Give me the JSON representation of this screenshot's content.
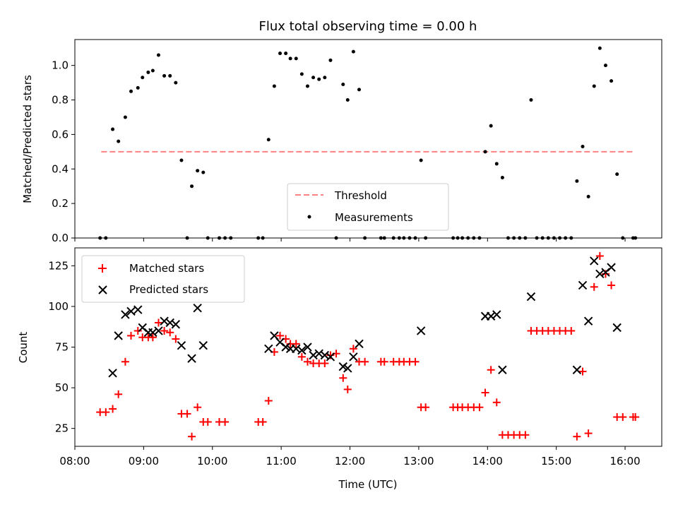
{
  "chart_data": [
    {
      "type": "scatter",
      "title": "Flux total observing time = 0.00 h",
      "xlabel": "",
      "ylabel": "Matched/Predicted stars",
      "ylim": [
        0,
        1.15
      ],
      "yticks": [
        "0.0",
        "0.2",
        "0.4",
        "0.6",
        "0.8",
        "1.0"
      ],
      "grid": false,
      "legend": "lower-center",
      "threshold": {
        "name": "Threshold",
        "value": 0.5,
        "x_start": "08:23",
        "x_end": "16:08",
        "color": "#ff8080"
      },
      "series": [
        {
          "name": "Measurements",
          "color": "#000000",
          "points": [
            [
              "08:22",
              0.0
            ],
            [
              "08:27",
              0.0
            ],
            [
              "08:33",
              0.63
            ],
            [
              "08:38",
              0.56
            ],
            [
              "08:44",
              0.7
            ],
            [
              "08:49",
              0.85
            ],
            [
              "08:55",
              0.87
            ],
            [
              "08:59",
              0.93
            ],
            [
              "09:04",
              0.96
            ],
            [
              "09:08",
              0.97
            ],
            [
              "09:13",
              1.06
            ],
            [
              "09:18",
              0.94
            ],
            [
              "09:23",
              0.94
            ],
            [
              "09:28",
              0.9
            ],
            [
              "09:33",
              0.45
            ],
            [
              "09:38",
              0.0
            ],
            [
              "09:42",
              0.3
            ],
            [
              "09:47",
              0.39
            ],
            [
              "09:52",
              0.38
            ],
            [
              "09:56",
              0.0
            ],
            [
              "10:06",
              0.0
            ],
            [
              "10:11",
              0.0
            ],
            [
              "10:16",
              0.0
            ],
            [
              "10:40",
              0.0
            ],
            [
              "10:44",
              0.0
            ],
            [
              "10:49",
              0.57
            ],
            [
              "10:54",
              0.88
            ],
            [
              "10:59",
              1.07
            ],
            [
              "11:04",
              1.07
            ],
            [
              "11:08",
              1.04
            ],
            [
              "11:13",
              1.04
            ],
            [
              "11:18",
              0.95
            ],
            [
              "11:23",
              0.88
            ],
            [
              "11:28",
              0.93
            ],
            [
              "11:33",
              0.92
            ],
            [
              "11:38",
              0.93
            ],
            [
              "11:43",
              1.03
            ],
            [
              "11:48",
              0.0
            ],
            [
              "11:54",
              0.89
            ],
            [
              "11:58",
              0.8
            ],
            [
              "12:03",
              1.08
            ],
            [
              "12:08",
              0.86
            ],
            [
              "12:13",
              0.0
            ],
            [
              "12:27",
              0.0
            ],
            [
              "12:30",
              0.0
            ],
            [
              "12:38",
              0.0
            ],
            [
              "12:43",
              0.0
            ],
            [
              "12:47",
              0.0
            ],
            [
              "12:52",
              0.0
            ],
            [
              "12:57",
              0.0
            ],
            [
              "13:02",
              0.45
            ],
            [
              "13:06",
              0.0
            ],
            [
              "13:30",
              0.0
            ],
            [
              "13:34",
              0.0
            ],
            [
              "13:38",
              0.0
            ],
            [
              "13:43",
              0.0
            ],
            [
              "13:48",
              0.0
            ],
            [
              "13:53",
              0.0
            ],
            [
              "13:58",
              0.5
            ],
            [
              "14:03",
              0.65
            ],
            [
              "14:08",
              0.43
            ],
            [
              "14:13",
              0.35
            ],
            [
              "14:18",
              0.0
            ],
            [
              "14:23",
              0.0
            ],
            [
              "14:28",
              0.0
            ],
            [
              "14:33",
              0.0
            ],
            [
              "14:38",
              0.8
            ],
            [
              "14:43",
              0.0
            ],
            [
              "14:48",
              0.0
            ],
            [
              "14:53",
              0.0
            ],
            [
              "14:58",
              0.0
            ],
            [
              "15:03",
              0.0
            ],
            [
              "15:08",
              0.0
            ],
            [
              "15:13",
              0.0
            ],
            [
              "15:18",
              0.33
            ],
            [
              "15:23",
              0.53
            ],
            [
              "15:28",
              0.24
            ],
            [
              "15:33",
              0.88
            ],
            [
              "15:38",
              1.1
            ],
            [
              "15:43",
              1.0
            ],
            [
              "15:48",
              0.91
            ],
            [
              "15:53",
              0.37
            ],
            [
              "15:58",
              0.0
            ],
            [
              "16:07",
              0.0
            ],
            [
              "16:09",
              0.0
            ]
          ]
        }
      ]
    },
    {
      "type": "scatter",
      "title": "",
      "xlabel": "Time (UTC)",
      "ylabel": "Count",
      "xlim": [
        "08:00",
        "16:32"
      ],
      "xticks": [
        "08:00",
        "09:00",
        "10:00",
        "11:00",
        "12:00",
        "13:00",
        "14:00",
        "15:00",
        "16:00"
      ],
      "ylim": [
        14,
        136
      ],
      "yticks": [
        "25",
        "50",
        "75",
        "100",
        "125"
      ],
      "grid": false,
      "legend": "top-left",
      "series": [
        {
          "name": "Matched stars",
          "marker": "plus",
          "color": "#ff0000",
          "points": [
            [
              "08:22",
              35
            ],
            [
              "08:27",
              35
            ],
            [
              "08:33",
              37
            ],
            [
              "08:38",
              46
            ],
            [
              "08:44",
              66
            ],
            [
              "08:49",
              82
            ],
            [
              "08:55",
              85
            ],
            [
              "08:59",
              81
            ],
            [
              "09:04",
              81
            ],
            [
              "09:08",
              81
            ],
            [
              "09:13",
              90
            ],
            [
              "09:18",
              85
            ],
            [
              "09:23",
              84
            ],
            [
              "09:28",
              80
            ],
            [
              "09:33",
              34
            ],
            [
              "09:38",
              34
            ],
            [
              "09:42",
              20
            ],
            [
              "09:47",
              38
            ],
            [
              "09:52",
              29
            ],
            [
              "09:56",
              29
            ],
            [
              "10:06",
              29
            ],
            [
              "10:11",
              29
            ],
            [
              "10:40",
              29
            ],
            [
              "10:44",
              29
            ],
            [
              "10:49",
              42
            ],
            [
              "10:54",
              72
            ],
            [
              "10:59",
              82
            ],
            [
              "11:04",
              80
            ],
            [
              "11:08",
              77
            ],
            [
              "11:13",
              77
            ],
            [
              "11:18",
              69
            ],
            [
              "11:23",
              66
            ],
            [
              "11:28",
              65
            ],
            [
              "11:33",
              65
            ],
            [
              "11:38",
              65
            ],
            [
              "11:43",
              70
            ],
            [
              "11:48",
              71
            ],
            [
              "11:54",
              56
            ],
            [
              "11:58",
              49
            ],
            [
              "12:03",
              74
            ],
            [
              "12:08",
              66
            ],
            [
              "12:13",
              66
            ],
            [
              "12:27",
              66
            ],
            [
              "12:30",
              66
            ],
            [
              "12:38",
              66
            ],
            [
              "12:43",
              66
            ],
            [
              "12:47",
              66
            ],
            [
              "12:52",
              66
            ],
            [
              "12:57",
              66
            ],
            [
              "13:02",
              38
            ],
            [
              "13:06",
              38
            ],
            [
              "13:30",
              38
            ],
            [
              "13:34",
              38
            ],
            [
              "13:38",
              38
            ],
            [
              "13:43",
              38
            ],
            [
              "13:48",
              38
            ],
            [
              "13:53",
              38
            ],
            [
              "13:58",
              47
            ],
            [
              "14:03",
              61
            ],
            [
              "14:08",
              41
            ],
            [
              "14:13",
              21
            ],
            [
              "14:18",
              21
            ],
            [
              "14:23",
              21
            ],
            [
              "14:28",
              21
            ],
            [
              "14:33",
              21
            ],
            [
              "14:38",
              85
            ],
            [
              "14:43",
              85
            ],
            [
              "14:48",
              85
            ],
            [
              "14:53",
              85
            ],
            [
              "14:58",
              85
            ],
            [
              "15:03",
              85
            ],
            [
              "15:08",
              85
            ],
            [
              "15:13",
              85
            ],
            [
              "15:18",
              20
            ],
            [
              "15:23",
              60
            ],
            [
              "15:28",
              22
            ],
            [
              "15:33",
              112
            ],
            [
              "15:38",
              131
            ],
            [
              "15:43",
              120
            ],
            [
              "15:48",
              113
            ],
            [
              "15:53",
              32
            ],
            [
              "15:58",
              32
            ],
            [
              "16:07",
              32
            ],
            [
              "16:09",
              32
            ]
          ]
        },
        {
          "name": "Predicted stars",
          "marker": "x",
          "color": "#000000",
          "points": [
            [
              "08:33",
              59
            ],
            [
              "08:38",
              82
            ],
            [
              "08:44",
              95
            ],
            [
              "08:49",
              97
            ],
            [
              "08:55",
              98
            ],
            [
              "08:59",
              87
            ],
            [
              "09:04",
              84
            ],
            [
              "09:08",
              84
            ],
            [
              "09:13",
              85
            ],
            [
              "09:18",
              91
            ],
            [
              "09:23",
              90
            ],
            [
              "09:28",
              89
            ],
            [
              "09:33",
              76
            ],
            [
              "09:42",
              68
            ],
            [
              "09:47",
              99
            ],
            [
              "09:52",
              76
            ],
            [
              "10:49",
              74
            ],
            [
              "10:54",
              82
            ],
            [
              "10:59",
              78
            ],
            [
              "11:04",
              75
            ],
            [
              "11:08",
              74
            ],
            [
              "11:13",
              74
            ],
            [
              "11:18",
              73
            ],
            [
              "11:23",
              75
            ],
            [
              "11:28",
              70
            ],
            [
              "11:33",
              71
            ],
            [
              "11:38",
              70
            ],
            [
              "11:43",
              69
            ],
            [
              "11:54",
              63
            ],
            [
              "11:58",
              62
            ],
            [
              "12:03",
              69
            ],
            [
              "12:08",
              77
            ],
            [
              "13:02",
              85
            ],
            [
              "13:58",
              94
            ],
            [
              "14:03",
              94
            ],
            [
              "14:08",
              95
            ],
            [
              "14:13",
              61
            ],
            [
              "14:38",
              106
            ],
            [
              "15:18",
              61
            ],
            [
              "15:23",
              113
            ],
            [
              "15:28",
              91
            ],
            [
              "15:33",
              128
            ],
            [
              "15:38",
              120
            ],
            [
              "15:43",
              121
            ],
            [
              "15:48",
              124
            ],
            [
              "15:53",
              87
            ]
          ]
        }
      ]
    }
  ]
}
